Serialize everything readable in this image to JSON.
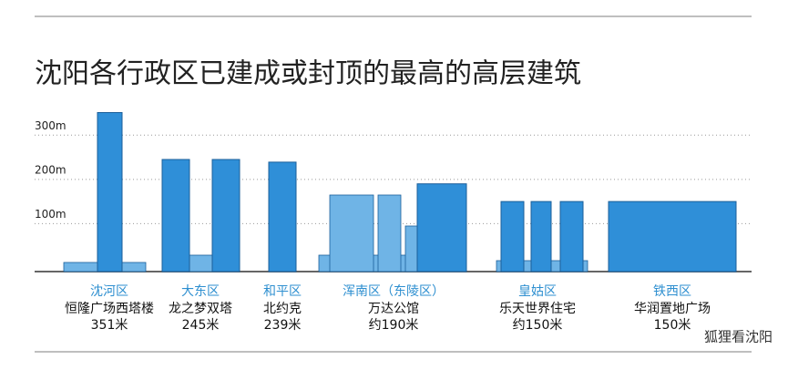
{
  "chart_data": {
    "type": "bar",
    "title": "沈阳各行政区已建成或封顶的最高的高层建筑",
    "categories": [
      "沈河区",
      "大东区",
      "和平区",
      "浑南区（东陵区）",
      "皇姑区",
      "铁西区"
    ],
    "buildings": [
      "恒隆广场西塔楼",
      "龙之梦双塔",
      "北约克",
      "万达公馆",
      "乐天世界住宅",
      "华润置地广场"
    ],
    "values": [
      351,
      245,
      239,
      190,
      150,
      150
    ],
    "value_labels": [
      "351米",
      "245米",
      "239米",
      "约190米",
      "约150米",
      "150米"
    ],
    "color": "#2f8fd8",
    "ylim": [
      0,
      350
    ],
    "yticks": [
      {
        "value": 100,
        "label": "100m"
      },
      {
        "value": 200,
        "label": "200m"
      },
      {
        "value": 300,
        "label": "300m"
      }
    ],
    "grid": true,
    "watermark": "狐狸看沈阳"
  }
}
